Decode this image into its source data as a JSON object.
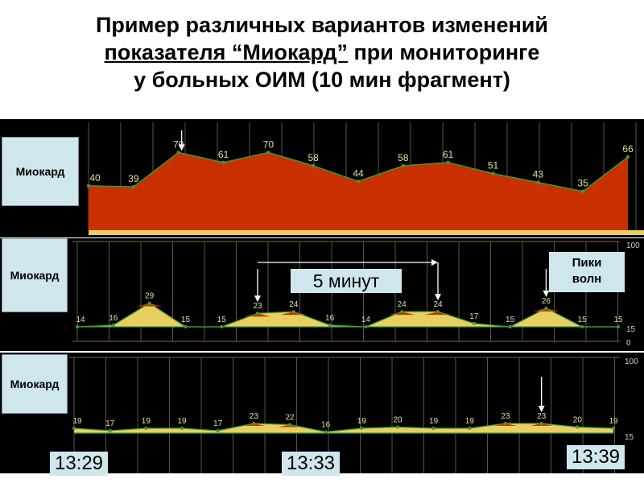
{
  "title": {
    "line1": "Пример различных вариантов изменений",
    "line2_underlined": "показателя “Миокард”",
    "line2_rest": " при мониторинге",
    "line3": "у больных ОИМ (10 мин фрагмент)"
  },
  "notes": {
    "interval": "5 минут",
    "peaks_line1": "Пики",
    "peaks_line2": "волн"
  },
  "times": [
    "13:29",
    "13:33",
    "13:39"
  ],
  "colors": {
    "area_fill": "#c83000",
    "area_fill_light": "#e8d060",
    "line": "#3a9a3a",
    "grid": "#555555",
    "label_bg": "#cfe7ec"
  },
  "chart_data": [
    {
      "type": "area",
      "label": "Миокард",
      "values": [
        40,
        39,
        70,
        61,
        70,
        58,
        44,
        58,
        61,
        51,
        43,
        35,
        66
      ],
      "marker_index": 2,
      "axis_ticks": []
    },
    {
      "type": "area",
      "label": "Миокард",
      "values": [
        14,
        16,
        29,
        15,
        15,
        23,
        24,
        16,
        14,
        24,
        24,
        17,
        15,
        26,
        15,
        15
      ],
      "marker_indices": [
        5,
        10,
        13
      ],
      "axis_ticks": [
        "100",
        "15",
        "0"
      ]
    },
    {
      "type": "area",
      "label": "Миокард",
      "values": [
        19,
        17,
        19,
        19,
        17,
        23,
        22,
        16,
        19,
        20,
        19,
        19,
        23,
        23,
        20,
        19
      ],
      "marker_indices": [
        13
      ],
      "axis_ticks": [
        "100",
        "15"
      ]
    }
  ]
}
